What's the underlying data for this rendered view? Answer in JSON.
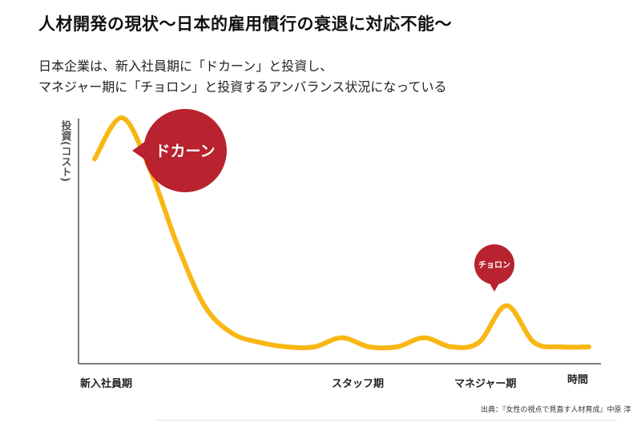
{
  "header": {
    "title": "人材開発の現状〜日本的雇用慣行の衰退に対応不能〜",
    "subtitle_line1": "日本企業は、新入社員期に「ドカーン」と投資し、",
    "subtitle_line2": "マネジャー期に「チョロン」と投資するアンバランス状況になっている"
  },
  "chart_data": {
    "type": "line",
    "ylabel": "投資(コスト)",
    "xlabel": "時間",
    "x_ticks": [
      "新入社員期",
      "スタッフ期",
      "マネジャー期"
    ],
    "series": [
      {
        "values": [
          0.82,
          1.0,
          0.78,
          0.45,
          0.18,
          0.06,
          0.02,
          0.0,
          0.0,
          0.04,
          0.0,
          0.0,
          0.04,
          0.0,
          0.02,
          0.18,
          0.02,
          0.0,
          0.0
        ]
      }
    ],
    "annotations": [
      {
        "label": "ドカーン",
        "at": "新入社員期"
      },
      {
        "label": "チョロン",
        "at": "マネジャー期"
      }
    ],
    "colors": {
      "line": "#F9B714",
      "bubble": "#B8232F",
      "axis": "#555555"
    },
    "grid": false
  },
  "source": "出典：『女性の視点で見直す人材育成』中原 淳"
}
